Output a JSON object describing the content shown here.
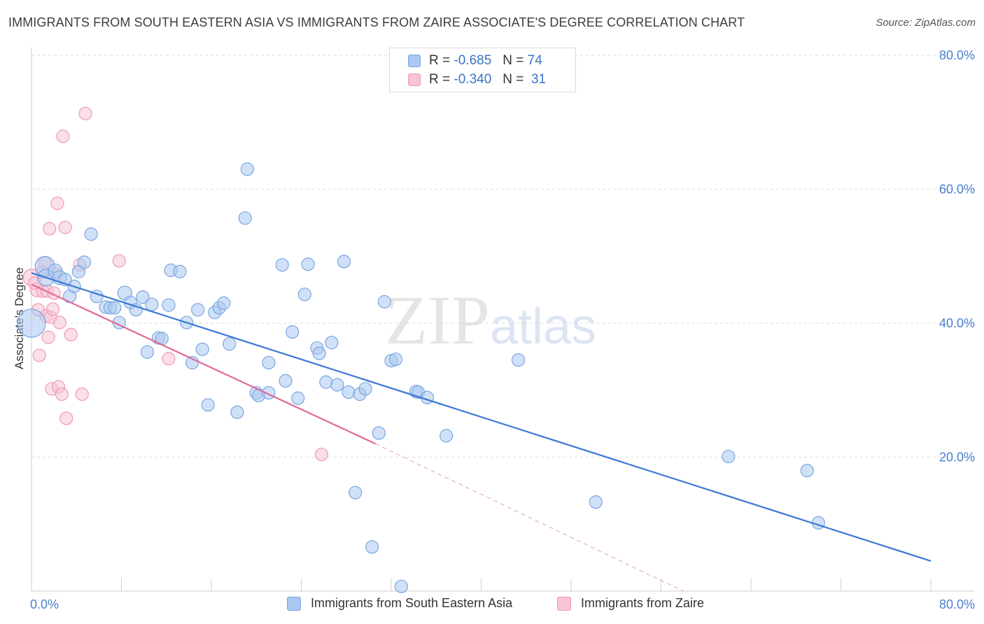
{
  "title": "IMMIGRANTS FROM SOUTH EASTERN ASIA VS IMMIGRANTS FROM ZAIRE ASSOCIATE'S DEGREE CORRELATION CHART",
  "source": "Source: ZipAtlas.com",
  "watermark": {
    "zip": "ZIP",
    "atlas": "atlas"
  },
  "legend": {
    "rows": [
      {
        "r_label": "R =",
        "r_value": "-0.685",
        "n_label": "N =",
        "n_value": "74",
        "color": "#aac8f0",
        "border": "#7aa6e0"
      },
      {
        "r_label": "R =",
        "r_value": "-0.340",
        "n_label": "N =",
        "n_value": "31",
        "color": "#f8c4d6",
        "border": "#ee9ab6"
      }
    ]
  },
  "bottom_legend": [
    {
      "label": "Immigrants from South Eastern Asia",
      "color": "#aac8f0",
      "border": "#7aa6e0"
    },
    {
      "label": "Immigrants from Zaire",
      "color": "#f8c4d6",
      "border": "#ee9ab6"
    }
  ],
  "chart_data": {
    "type": "scatter",
    "title": "IMMIGRANTS FROM SOUTH EASTERN ASIA VS IMMIGRANTS FROM ZAIRE ASSOCIATE'S DEGREE CORRELATION CHART",
    "xlabel": "",
    "ylabel": "Associate's Degree",
    "xlim": [
      0,
      80
    ],
    "ylim": [
      0,
      80
    ],
    "x_ticks": [
      "0.0%",
      "80.0%"
    ],
    "y_ticks": [
      "20.0%",
      "40.0%",
      "60.0%",
      "80.0%"
    ],
    "grid": true,
    "legend_position": "top-center",
    "colors": {
      "blue": "#3a78d4",
      "pink": "#e06a94",
      "blue_fill": "#aac8f0",
      "pink_fill": "#f8c4d6"
    },
    "series": [
      {
        "name": "Immigrants from South Eastern Asia",
        "r": -0.685,
        "n": 74,
        "trend": {
          "x": [
            0,
            80
          ],
          "y": [
            47.5,
            4.5
          ],
          "style": "solid"
        },
        "points": [
          [
            0.0,
            40.0,
            20
          ],
          [
            1.2,
            48.5,
            14
          ],
          [
            1.3,
            46.8,
            12
          ],
          [
            2.1,
            47.8,
            10
          ],
          [
            2.5,
            46.8,
            10
          ],
          [
            3.4,
            44.0,
            9
          ],
          [
            3.8,
            45.5,
            9
          ],
          [
            4.2,
            47.7,
            9
          ],
          [
            4.7,
            49.1,
            9
          ],
          [
            5.3,
            53.3,
            9
          ],
          [
            5.8,
            44.0,
            9
          ],
          [
            6.6,
            42.4,
            9
          ],
          [
            7.0,
            42.3,
            9
          ],
          [
            7.4,
            42.3,
            9
          ],
          [
            7.8,
            40.1,
            9
          ],
          [
            8.3,
            44.5,
            10
          ],
          [
            8.8,
            43.1,
            9
          ],
          [
            9.3,
            42.0,
            9
          ],
          [
            9.9,
            43.9,
            9
          ],
          [
            10.3,
            35.7,
            9
          ],
          [
            10.7,
            42.8,
            9
          ],
          [
            11.3,
            37.8,
            9
          ],
          [
            11.6,
            37.7,
            9
          ],
          [
            12.2,
            42.7,
            9
          ],
          [
            12.4,
            47.9,
            9
          ],
          [
            13.2,
            47.7,
            9
          ],
          [
            13.8,
            40.1,
            9
          ],
          [
            14.3,
            34.1,
            9
          ],
          [
            14.8,
            42.0,
            9
          ],
          [
            15.2,
            36.1,
            9
          ],
          [
            15.7,
            27.8,
            9
          ],
          [
            16.3,
            41.6,
            9
          ],
          [
            16.7,
            42.3,
            9
          ],
          [
            17.1,
            43.0,
            9
          ],
          [
            17.6,
            36.9,
            9
          ],
          [
            18.3,
            26.7,
            9
          ],
          [
            19.0,
            55.7,
            9
          ],
          [
            19.2,
            63.0,
            9
          ],
          [
            20.0,
            29.6,
            9
          ],
          [
            20.2,
            29.2,
            9
          ],
          [
            21.1,
            29.6,
            9
          ],
          [
            21.1,
            34.1,
            9
          ],
          [
            22.3,
            48.7,
            9
          ],
          [
            22.6,
            31.4,
            9
          ],
          [
            23.2,
            38.7,
            9
          ],
          [
            23.7,
            28.8,
            9
          ],
          [
            24.3,
            44.3,
            9
          ],
          [
            24.6,
            48.8,
            9
          ],
          [
            25.4,
            36.3,
            9
          ],
          [
            25.6,
            35.5,
            9
          ],
          [
            26.2,
            31.2,
            9
          ],
          [
            26.7,
            37.1,
            9
          ],
          [
            27.2,
            30.8,
            9
          ],
          [
            27.8,
            49.2,
            9
          ],
          [
            28.2,
            29.7,
            9
          ],
          [
            28.8,
            14.7,
            9
          ],
          [
            29.2,
            29.4,
            9
          ],
          [
            29.7,
            30.2,
            9
          ],
          [
            30.3,
            6.6,
            9
          ],
          [
            30.9,
            23.6,
            9
          ],
          [
            31.4,
            43.2,
            9
          ],
          [
            32.0,
            34.4,
            9
          ],
          [
            32.4,
            34.6,
            9
          ],
          [
            32.9,
            0.7,
            9
          ],
          [
            34.2,
            29.8,
            9
          ],
          [
            34.4,
            29.7,
            9
          ],
          [
            35.2,
            28.9,
            9
          ],
          [
            36.9,
            23.2,
            9
          ],
          [
            43.3,
            34.5,
            9
          ],
          [
            50.2,
            13.3,
            9
          ],
          [
            62.0,
            20.1,
            9
          ],
          [
            69.0,
            18.0,
            9
          ],
          [
            70.0,
            10.2,
            9
          ],
          [
            3.0,
            46.5,
            9
          ]
        ]
      },
      {
        "name": "Immigrants from Zaire",
        "r": -0.34,
        "n": 31,
        "trend": {
          "x": [
            0,
            30.6
          ],
          "y": [
            45.8,
            22.0
          ],
          "style": "solid",
          "extended_x": [
            30.6,
            58
          ],
          "extended_y": [
            22.0,
            0.0
          ],
          "extended_style": "dashed"
        },
        "points": [
          [
            0.0,
            46.8,
            12
          ],
          [
            0.5,
            45.0,
            10
          ],
          [
            0.6,
            42.0,
            9
          ],
          [
            0.7,
            35.2,
            9
          ],
          [
            1.0,
            44.8,
            9
          ],
          [
            1.2,
            49.0,
            9
          ],
          [
            1.3,
            41.1,
            9
          ],
          [
            1.4,
            44.8,
            9
          ],
          [
            1.5,
            37.9,
            9
          ],
          [
            1.6,
            54.1,
            9
          ],
          [
            1.7,
            40.9,
            9
          ],
          [
            1.8,
            30.2,
            9
          ],
          [
            1.9,
            42.1,
            9
          ],
          [
            2.0,
            44.5,
            9
          ],
          [
            2.1,
            47.4,
            9
          ],
          [
            2.3,
            57.9,
            9
          ],
          [
            2.4,
            30.5,
            9
          ],
          [
            2.5,
            40.1,
            9
          ],
          [
            2.7,
            29.4,
            9
          ],
          [
            2.8,
            67.9,
            9
          ],
          [
            3.0,
            54.3,
            9
          ],
          [
            3.1,
            25.8,
            9
          ],
          [
            3.5,
            38.3,
            9
          ],
          [
            4.3,
            48.7,
            9
          ],
          [
            4.5,
            29.4,
            9
          ],
          [
            4.8,
            71.3,
            9
          ],
          [
            7.8,
            49.3,
            9
          ],
          [
            12.2,
            34.7,
            9
          ],
          [
            25.8,
            20.4,
            9
          ],
          [
            0.3,
            46.0,
            9
          ],
          [
            1.0,
            47.6,
            9
          ]
        ]
      }
    ]
  }
}
